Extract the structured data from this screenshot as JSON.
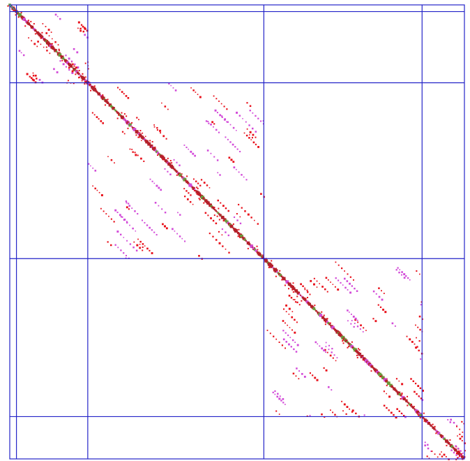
{
  "matrix": {
    "block_boundaries": [
      0,
      3,
      35,
      114,
      185,
      204
    ],
    "size": 204,
    "colors": {
      "grid": "#2323c8",
      "diagonal": "#b4202a",
      "offdiag_red": "#e8101a",
      "offdiag_magenta": "#d24bd8",
      "corner_mark": "#2aa89a"
    },
    "seed": 20240611
  }
}
